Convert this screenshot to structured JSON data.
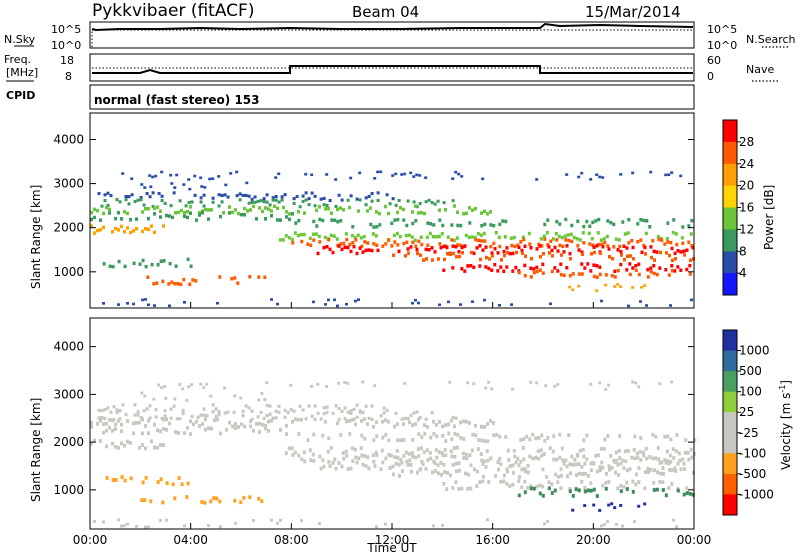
{
  "header": {
    "station": "Pykkvibaer (fitACF)",
    "beam": "Beam 04",
    "date": "15/Mar/2014"
  },
  "panels": {
    "nsky_label": "N.Sky",
    "nsearch_label": "N.Search",
    "noise_ticks": [
      "10^5",
      "10^0"
    ],
    "freq_label_top": "Freq.",
    "freq_label_unit": "[MHz]",
    "freq_ticks": [
      "18",
      "8"
    ],
    "nave_label": "Nave",
    "nave_ticks": [
      "60",
      "0"
    ],
    "cpid_label": "CPID",
    "cpid_text": "normal (fast stereo) 153"
  },
  "chart_data": [
    {
      "type": "heatmap",
      "name": "power",
      "ylabel": "Slant Range [km]",
      "yticks": [
        1000,
        2000,
        3000,
        4000
      ],
      "ylim": [
        180,
        4600
      ],
      "xlim_hours": [
        0,
        24
      ],
      "colorbar_label": "Power [dB]",
      "colorbar_ticks": [
        "28",
        "24",
        "20",
        "16",
        "12",
        "8",
        "4"
      ],
      "colorbar_colors": [
        "#ff0000",
        "#ff5a00",
        "#ffa000",
        "#ffd400",
        "#6cc63a",
        "#3a9a5e",
        "#2a4ea8",
        "#1515ff"
      ]
    },
    {
      "type": "heatmap",
      "name": "velocity",
      "ylabel": "Slant Range [km]",
      "yticks": [
        1000,
        2000,
        3000,
        4000
      ],
      "ylim": [
        180,
        4600
      ],
      "xlim_hours": [
        0,
        24
      ],
      "xlabel": "Time UT",
      "xticks": [
        "00:00",
        "04:00",
        "08:00",
        "12:00",
        "16:00",
        "20:00",
        "00:00"
      ],
      "colorbar_label": "Velocity [m s",
      "colorbar_label_sup": "-1",
      "colorbar_label_end": "]",
      "colorbar_ticks": [
        "1000",
        "500",
        "100",
        "25",
        "-25",
        "-100",
        "-500",
        "-1000"
      ],
      "colorbar_colors": [
        "#2030a0",
        "#2e6e9e",
        "#4aa060",
        "#8ed03a",
        "#c8c8c0",
        "#c8c8c0",
        "#ffa020",
        "#ff6000",
        "#ff0000"
      ]
    }
  ],
  "gate_rows": [
    {
      "r": 3180,
      "w": 60,
      "s": 1,
      "e": 23.5,
      "p": "#2a4ea8",
      "v": "#c8c8c0",
      "d": 0.25
    },
    {
      "r": 2950,
      "w": 60,
      "s": 2,
      "e": 7,
      "p": "#2a4ea8",
      "v": "#c8c8c0",
      "d": 0.3
    },
    {
      "r": 2700,
      "w": 70,
      "s": 0.3,
      "e": 12,
      "p": "#2a4ea8",
      "v": "#c8c8c0",
      "d": 0.5
    },
    {
      "r": 2550,
      "w": 70,
      "s": 0.3,
      "e": 14.5,
      "p": "#3a9a5e",
      "v": "#c8c8c0",
      "d": 0.6
    },
    {
      "r": 2400,
      "w": 80,
      "s": 0,
      "e": 16,
      "p": "#6cc63a",
      "v": "#c8c8c0",
      "d": 0.6
    },
    {
      "r": 2250,
      "w": 80,
      "s": 0,
      "e": 8,
      "p": "#3a9a5e",
      "v": "#c8c8c0",
      "d": 0.55
    },
    {
      "r": 2100,
      "w": 80,
      "s": 8,
      "e": 24,
      "p": "#3a9a5e",
      "v": "#c8c8c0",
      "d": 0.5
    },
    {
      "r": 1950,
      "w": 80,
      "s": 0,
      "e": 3,
      "p": "#ffa000",
      "v": "#c8c8c0",
      "d": 0.7
    },
    {
      "r": 1800,
      "w": 80,
      "s": 7.5,
      "e": 24,
      "p": "#6cc63a",
      "v": "#c8c8c0",
      "d": 0.55
    },
    {
      "r": 1650,
      "w": 80,
      "s": 8,
      "e": 24,
      "p": "#ff5a00",
      "v": "#c8c8c0",
      "d": 0.65
    },
    {
      "r": 1500,
      "w": 80,
      "s": 9,
      "e": 24,
      "p": "#ff0000",
      "v": "#c8c8c0",
      "d": 0.65
    },
    {
      "r": 1350,
      "w": 80,
      "s": 12,
      "e": 24,
      "p": "#ff5a00",
      "v": "#c8c8c0",
      "d": 0.6
    },
    {
      "r": 1200,
      "w": 80,
      "s": 0.5,
      "e": 4,
      "p": "#3a9a5e",
      "v": "#ffa020",
      "d": 0.5
    },
    {
      "r": 1100,
      "w": 80,
      "s": 14,
      "e": 24,
      "p": "#ff0000",
      "v": "#c8c8c0",
      "d": 0.6
    },
    {
      "r": 950,
      "w": 80,
      "s": 17,
      "e": 24,
      "p": "#ff5a00",
      "v": "#3a8a5a",
      "d": 0.55
    },
    {
      "r": 800,
      "w": 80,
      "s": 2,
      "e": 7,
      "p": "#ff5a00",
      "v": "#ffa020",
      "d": 0.4
    },
    {
      "r": 650,
      "w": 60,
      "s": 19,
      "e": 22,
      "p": "#ffa000",
      "v": "#2030a0",
      "d": 0.35
    },
    {
      "r": 300,
      "w": 60,
      "s": 0,
      "e": 24,
      "p": "#2a4ea8",
      "v": "#c8c8c0",
      "d": 0.2
    }
  ]
}
